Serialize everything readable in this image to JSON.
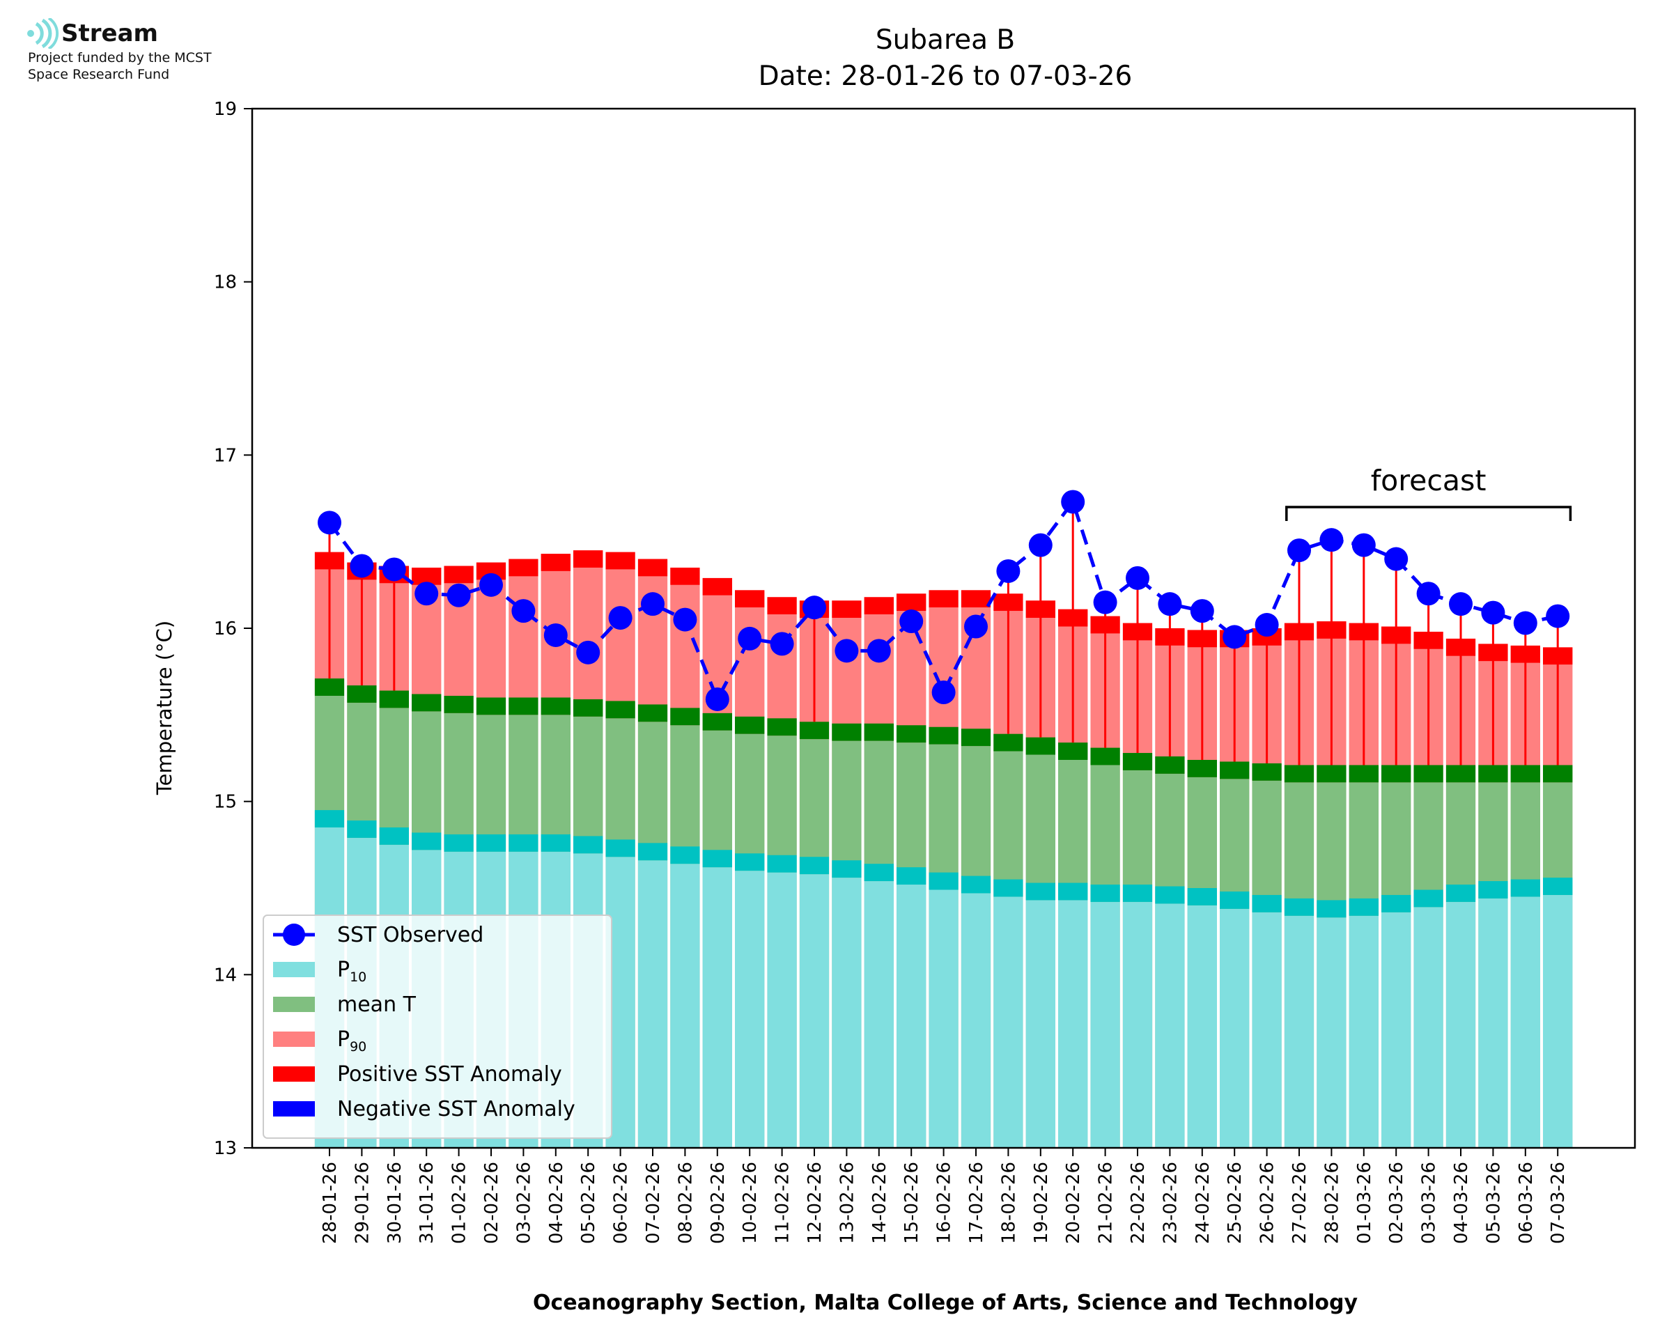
{
  "logo": {
    "name": "Stream",
    "line1": "Project funded by the MCST",
    "line2": "Space Research Fund",
    "color": "#7fdcdc"
  },
  "colors": {
    "p10_body": "#80dfdf",
    "p10_cap": "#00c2c2",
    "mean_body": "#80bf80",
    "mean_cap": "#008000",
    "p90_body": "#ff8080",
    "p90_cap": "#ff0000",
    "sst": "#0000ff",
    "anomaly_positive": "#ff0000",
    "anomaly_negative": "#0000ff"
  },
  "chart_data": {
    "type": "bar",
    "title": "Subarea B",
    "subtitle": "Date: 28-01-26 to 07-03-26",
    "xlabel": "Oceanography Section, Malta College of Arts, Science and Technology",
    "ylabel": "Temperature (°C)",
    "ylim": [
      13,
      19
    ],
    "yticks": [
      13,
      14,
      15,
      16,
      17,
      18,
      19
    ],
    "grid": false,
    "legend_position": "bottom-left",
    "annotation": {
      "text": "forecast",
      "from": "27-02-26",
      "to": "07-03-26"
    },
    "categories": [
      "28-01-26",
      "29-01-26",
      "30-01-26",
      "31-01-26",
      "01-02-26",
      "02-02-26",
      "03-02-26",
      "04-02-26",
      "05-02-26",
      "06-02-26",
      "07-02-26",
      "08-02-26",
      "09-02-26",
      "10-02-26",
      "11-02-26",
      "12-02-26",
      "13-02-26",
      "14-02-26",
      "15-02-26",
      "16-02-26",
      "17-02-26",
      "18-02-26",
      "19-02-26",
      "20-02-26",
      "21-02-26",
      "22-02-26",
      "23-02-26",
      "24-02-26",
      "25-02-26",
      "26-02-26",
      "27-02-26",
      "28-02-26",
      "01-03-26",
      "02-03-26",
      "03-03-26",
      "04-03-26",
      "05-03-26",
      "06-03-26",
      "07-03-26"
    ],
    "series": [
      {
        "name": "P10",
        "kind": "bar",
        "values": [
          14.95,
          14.89,
          14.85,
          14.82,
          14.81,
          14.81,
          14.81,
          14.81,
          14.8,
          14.78,
          14.76,
          14.74,
          14.72,
          14.7,
          14.69,
          14.68,
          14.66,
          14.64,
          14.62,
          14.59,
          14.57,
          14.55,
          14.53,
          14.53,
          14.52,
          14.52,
          14.51,
          14.5,
          14.48,
          14.46,
          14.44,
          14.43,
          14.44,
          14.46,
          14.49,
          14.52,
          14.54,
          14.55,
          14.56
        ]
      },
      {
        "name": "mean T",
        "kind": "bar",
        "values": [
          15.71,
          15.67,
          15.64,
          15.62,
          15.61,
          15.6,
          15.6,
          15.6,
          15.59,
          15.58,
          15.56,
          15.54,
          15.51,
          15.49,
          15.48,
          15.46,
          15.45,
          15.45,
          15.44,
          15.43,
          15.42,
          15.39,
          15.37,
          15.34,
          15.31,
          15.28,
          15.26,
          15.24,
          15.23,
          15.22,
          15.21,
          15.21,
          15.21,
          15.21,
          15.21,
          15.21,
          15.21,
          15.21,
          15.21
        ]
      },
      {
        "name": "P90",
        "kind": "bar",
        "values": [
          16.44,
          16.38,
          16.36,
          16.35,
          16.36,
          16.38,
          16.4,
          16.43,
          16.45,
          16.44,
          16.4,
          16.35,
          16.29,
          16.22,
          16.18,
          16.16,
          16.16,
          16.18,
          16.2,
          16.22,
          16.22,
          16.2,
          16.16,
          16.11,
          16.07,
          16.03,
          16.0,
          15.99,
          15.99,
          16.0,
          16.03,
          16.04,
          16.03,
          16.01,
          15.98,
          15.94,
          15.91,
          15.9,
          15.89
        ]
      },
      {
        "name": "SST Observed",
        "kind": "line",
        "values": [
          16.61,
          16.36,
          16.34,
          16.2,
          16.19,
          16.25,
          16.1,
          15.96,
          15.86,
          16.06,
          16.14,
          16.05,
          15.59,
          15.94,
          15.91,
          16.12,
          15.87,
          15.87,
          16.04,
          15.63,
          16.01,
          16.33,
          16.48,
          16.73,
          16.15,
          16.29,
          16.14,
          16.1,
          15.95,
          16.02,
          16.45,
          16.51,
          16.48,
          16.4,
          16.2,
          16.14,
          16.09,
          16.03,
          16.07
        ]
      }
    ],
    "legend": [
      {
        "key": "sst",
        "label": "SST Observed"
      },
      {
        "key": "p10",
        "label": "P",
        "sub": "10"
      },
      {
        "key": "mean",
        "label": "mean T"
      },
      {
        "key": "p90",
        "label": "P",
        "sub": "90"
      },
      {
        "key": "pos",
        "label": "Positive SST Anomaly"
      },
      {
        "key": "neg",
        "label": "Negative SST Anomaly"
      }
    ]
  }
}
